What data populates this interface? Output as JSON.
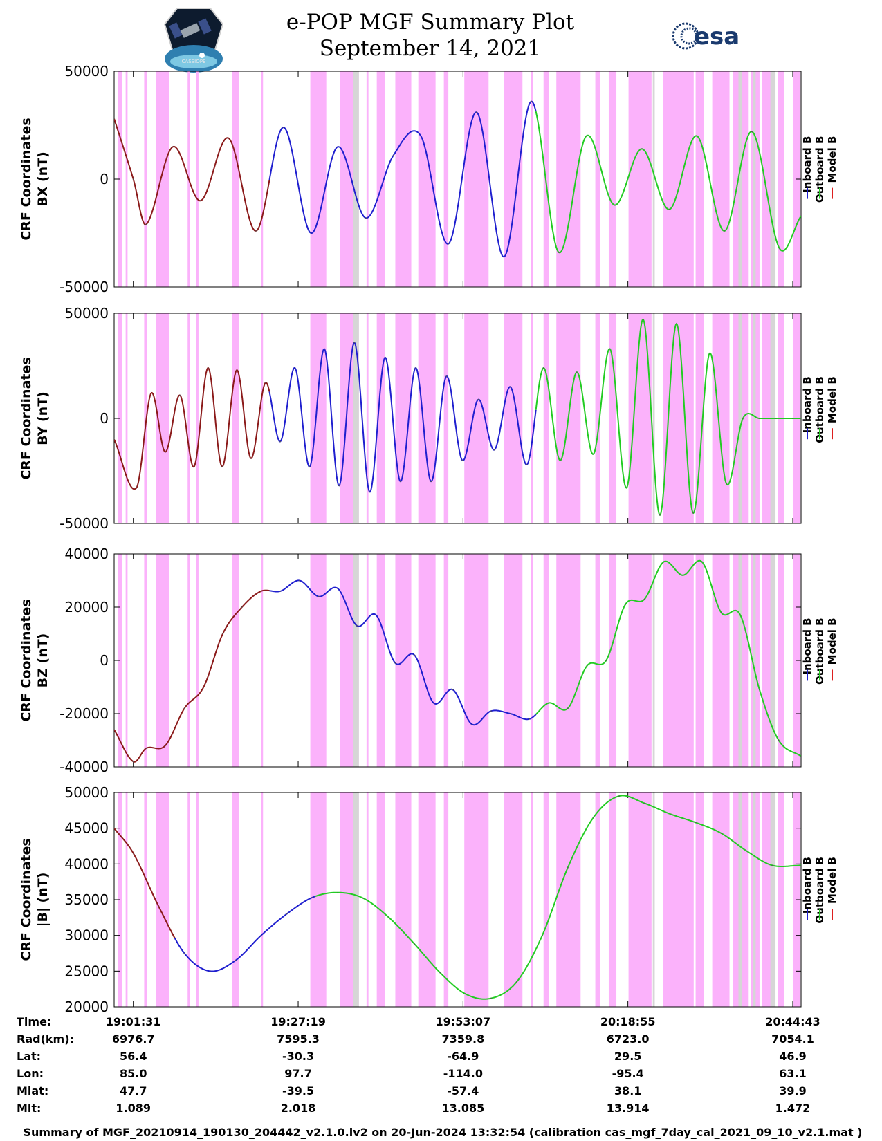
{
  "title": "e-POP MGF Summary Plot",
  "subtitle": "September 14, 2021",
  "logo_left": "CASSIOPE",
  "logo_right": "esa",
  "footer": "Summary of MGF_20210914_190130_204442_v2.1.0.lv2 on 20-Jun-2024 13:32:54 (calibration cas_mgf_7day_cal_2021_09_10_v2.1.mat )",
  "legend": [
    {
      "label": "Inboard B",
      "color": "#1f1fcf"
    },
    {
      "label": "Outboard B",
      "color": "#22cc22"
    },
    {
      "label": "Model B",
      "color": "#dd2020"
    }
  ],
  "colors": {
    "shade_magenta": "#fbb2fb",
    "shade_gray": "#d6d6d6",
    "model": "#8b1a1a"
  },
  "ephemeris": {
    "labels": [
      "Time:",
      "Rad(km):",
      "Lat:",
      "Lon:",
      "Mlat:",
      "Mlt:"
    ],
    "columns": [
      [
        "19:01:31",
        "6976.7",
        "56.4",
        "85.0",
        "47.7",
        "1.089"
      ],
      [
        "19:27:19",
        "7595.3",
        "-30.3",
        "97.7",
        "-39.5",
        "2.018"
      ],
      [
        "19:53:07",
        "7359.8",
        "-64.9",
        "-114.0",
        "-57.4",
        "13.085"
      ],
      [
        "20:18:55",
        "6723.0",
        "29.5",
        "-95.4",
        "38.1",
        "13.914"
      ],
      [
        "20:44:43",
        "7054.1",
        "46.9",
        "63.1",
        "39.9",
        "1.472"
      ]
    ]
  },
  "chart_data": [
    {
      "type": "line",
      "ylabel": [
        "CRF Coordinates",
        "BX (nT)"
      ],
      "ylim": [
        -50000,
        50000
      ],
      "yticks": [
        "50000",
        "0",
        "-50000"
      ],
      "ytick_values": [
        50000,
        0,
        -50000
      ],
      "x_minutes_after_1901": [
        -3.0,
        0,
        2.0,
        6.2,
        10.5,
        14.9,
        19.2,
        23.5,
        27.8,
        32.0,
        36.4,
        40.7,
        45.0,
        49.3,
        53.7,
        58.0,
        62.3,
        66.6,
        70.9,
        75.3,
        79.6,
        83.9,
        88.2,
        92.5,
        96.8,
        101.1,
        104.5
      ],
      "y_nT": [
        28000,
        0,
        -21000,
        15000,
        -10000,
        19000,
        -24000,
        24000,
        -25000,
        15000,
        -18000,
        11000,
        20000,
        -30000,
        31000,
        -36000,
        36000,
        -34000,
        20000,
        -12000,
        14000,
        -14000,
        20000,
        -24000,
        22000,
        -32000,
        -17000
      ],
      "segments": [
        {
          "series": "Model B",
          "from_min": -3.0,
          "to_min": 21.3
        },
        {
          "series": "Inboard B",
          "from_min": 21.3,
          "to_min": 63.0
        },
        {
          "series": "Outboard B",
          "from_min": 63.0,
          "to_min": 104.5
        }
      ]
    },
    {
      "type": "line",
      "ylabel": [
        "CRF Coordinates",
        "BY (nT)"
      ],
      "ylim": [
        -50000,
        50000
      ],
      "yticks": [
        "50000",
        "0",
        "-50000"
      ],
      "ytick_values": [
        50000,
        0,
        -50000
      ],
      "x_minutes_after_1901": [
        -3.0,
        0.5,
        2.8,
        5.0,
        7.3,
        9.5,
        11.7,
        13.9,
        16.2,
        18.4,
        20.7,
        23.0,
        25.3,
        27.6,
        29.9,
        32.2,
        34.6,
        37.0,
        39.4,
        41.8,
        44.2,
        46.6,
        49.0,
        51.5,
        54.0,
        56.5,
        59.0,
        61.6,
        64.2,
        66.8,
        69.4,
        72.0,
        74.6,
        77.2,
        79.8,
        82.4,
        85.0,
        87.6,
        90.2,
        92.8,
        95.4,
        98.0,
        100.6,
        103.2,
        104.5
      ],
      "y_nT": [
        -10000,
        -33000,
        12000,
        -16000,
        11000,
        -23000,
        24000,
        -23000,
        23000,
        -19000,
        17000,
        -11000,
        24000,
        -23000,
        33000,
        -32000,
        36000,
        -35000,
        29000,
        -30000,
        24000,
        -30000,
        20000,
        -20000,
        9000,
        -15000,
        15000,
        -22000,
        24000,
        -20000,
        22000,
        -17000,
        33000,
        -33000,
        47000,
        -46000,
        45000,
        -45000,
        31000,
        -31000,
        0,
        0,
        0,
        0,
        0
      ],
      "segments": [
        {
          "series": "Model B",
          "from_min": -3.0,
          "to_min": 21.3
        },
        {
          "series": "Inboard B",
          "from_min": 21.3,
          "to_min": 63.0
        },
        {
          "series": "Outboard B",
          "from_min": 63.0,
          "to_min": 104.5
        }
      ]
    },
    {
      "type": "line",
      "ylabel": [
        "CRF Coordinates",
        "BZ (nT)"
      ],
      "ylim": [
        -40000,
        40000
      ],
      "yticks": [
        "40000",
        "20000",
        "0",
        "-20000",
        "-40000"
      ],
      "ytick_values": [
        40000,
        20000,
        0,
        -20000,
        -40000
      ],
      "x_minutes_after_1901": [
        -3.0,
        0.0,
        2.0,
        5.0,
        8.0,
        11.0,
        14.0,
        17.0,
        20.0,
        23.0,
        26.0,
        29.0,
        32.0,
        35.0,
        38.0,
        41.0,
        44.0,
        47.0,
        50.0,
        53.0,
        56.0,
        59.0,
        62.0,
        65.0,
        68.0,
        71.0,
        74.0,
        77.0,
        80.0,
        83.0,
        86.0,
        89.0,
        92.0,
        95.0,
        98.0,
        101.0,
        104.5
      ],
      "y_nT": [
        -26000,
        -38000,
        -33000,
        -32000,
        -18000,
        -10000,
        10000,
        20000,
        26000,
        26000,
        30000,
        24000,
        27000,
        13000,
        17000,
        -1000,
        2000,
        -16000,
        -11000,
        -24000,
        -19000,
        -20000,
        -22000,
        -16000,
        -18000,
        -2000,
        0,
        21000,
        23000,
        37000,
        32000,
        37000,
        18000,
        17000,
        -11000,
        -30000,
        -36000
      ],
      "segments": [
        {
          "series": "Model B",
          "from_min": -3.0,
          "to_min": 21.3
        },
        {
          "series": "Inboard B",
          "from_min": 21.3,
          "to_min": 63.0
        },
        {
          "series": "Outboard B",
          "from_min": 63.0,
          "to_min": 104.5
        }
      ]
    },
    {
      "type": "line",
      "ylabel": [
        "CRF Coordinates",
        "|B| (nT)"
      ],
      "ylim": [
        20000,
        50000
      ],
      "yticks": [
        "50000",
        "45000",
        "40000",
        "35000",
        "30000",
        "25000",
        "20000"
      ],
      "ytick_values": [
        50000,
        45000,
        40000,
        35000,
        30000,
        25000,
        20000
      ],
      "x_minutes_after_1901": [
        -3.0,
        0.0,
        4.0,
        8.0,
        12.0,
        16.0,
        20.0,
        24.0,
        28.0,
        32.0,
        36.0,
        40.0,
        44.0,
        48.0,
        52.0,
        56.0,
        60.0,
        64.0,
        68.0,
        72.0,
        76.0,
        80.0,
        84.0,
        88.0,
        92.0,
        96.0,
        100.0,
        104.5
      ],
      "y_nT": [
        45000,
        41500,
        34000,
        27500,
        25000,
        26500,
        30000,
        33000,
        35300,
        36000,
        35200,
        32500,
        28800,
        24800,
        21800,
        21200,
        23500,
        30000,
        39500,
        46500,
        49500,
        48500,
        47000,
        45800,
        44300,
        41800,
        39800,
        39800
      ],
      "segments": [
        {
          "series": "Model B",
          "from_min": -3.0,
          "to_min": 6.5
        },
        {
          "series": "Inboard B",
          "from_min": 6.5,
          "to_min": 28.5
        },
        {
          "series": "Outboard B",
          "from_min": 28.5,
          "to_min": 104.5
        }
      ]
    }
  ]
}
